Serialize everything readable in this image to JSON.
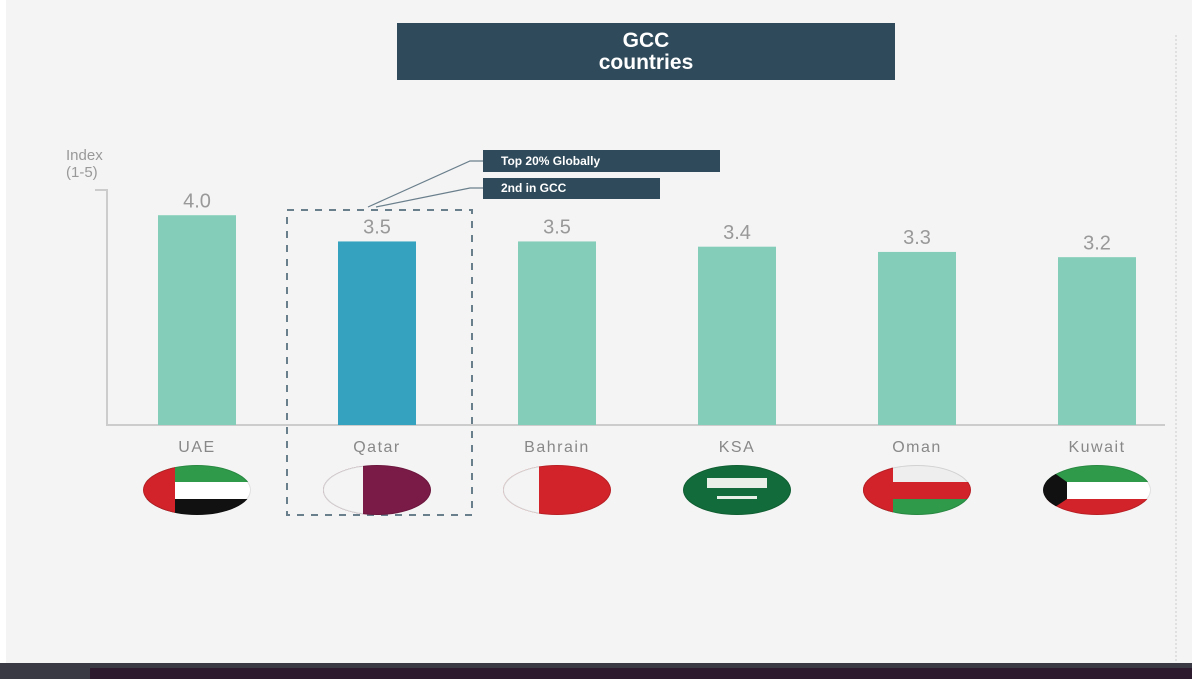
{
  "chart_data": {
    "type": "bar",
    "title": "GCC\ncountries",
    "y_label": "Index\n(1-5)",
    "categories": [
      "UAE",
      "Qatar",
      "Bahrain",
      "KSA",
      "Oman",
      "Kuwait"
    ],
    "values": [
      4.0,
      3.5,
      3.5,
      3.4,
      3.3,
      3.2
    ],
    "value_labels": [
      "4.0",
      "3.5",
      "3.5",
      "3.4",
      "3.3",
      "3.2"
    ],
    "colors": [
      "#84cdb8",
      "#35a3c0",
      "#84cdb8",
      "#84cdb8",
      "#84cdb8",
      "#84cdb8"
    ],
    "ylim": [
      0,
      4.5
    ],
    "annotations": [
      "Top 20% Globally",
      "2nd in GCC"
    ]
  }
}
